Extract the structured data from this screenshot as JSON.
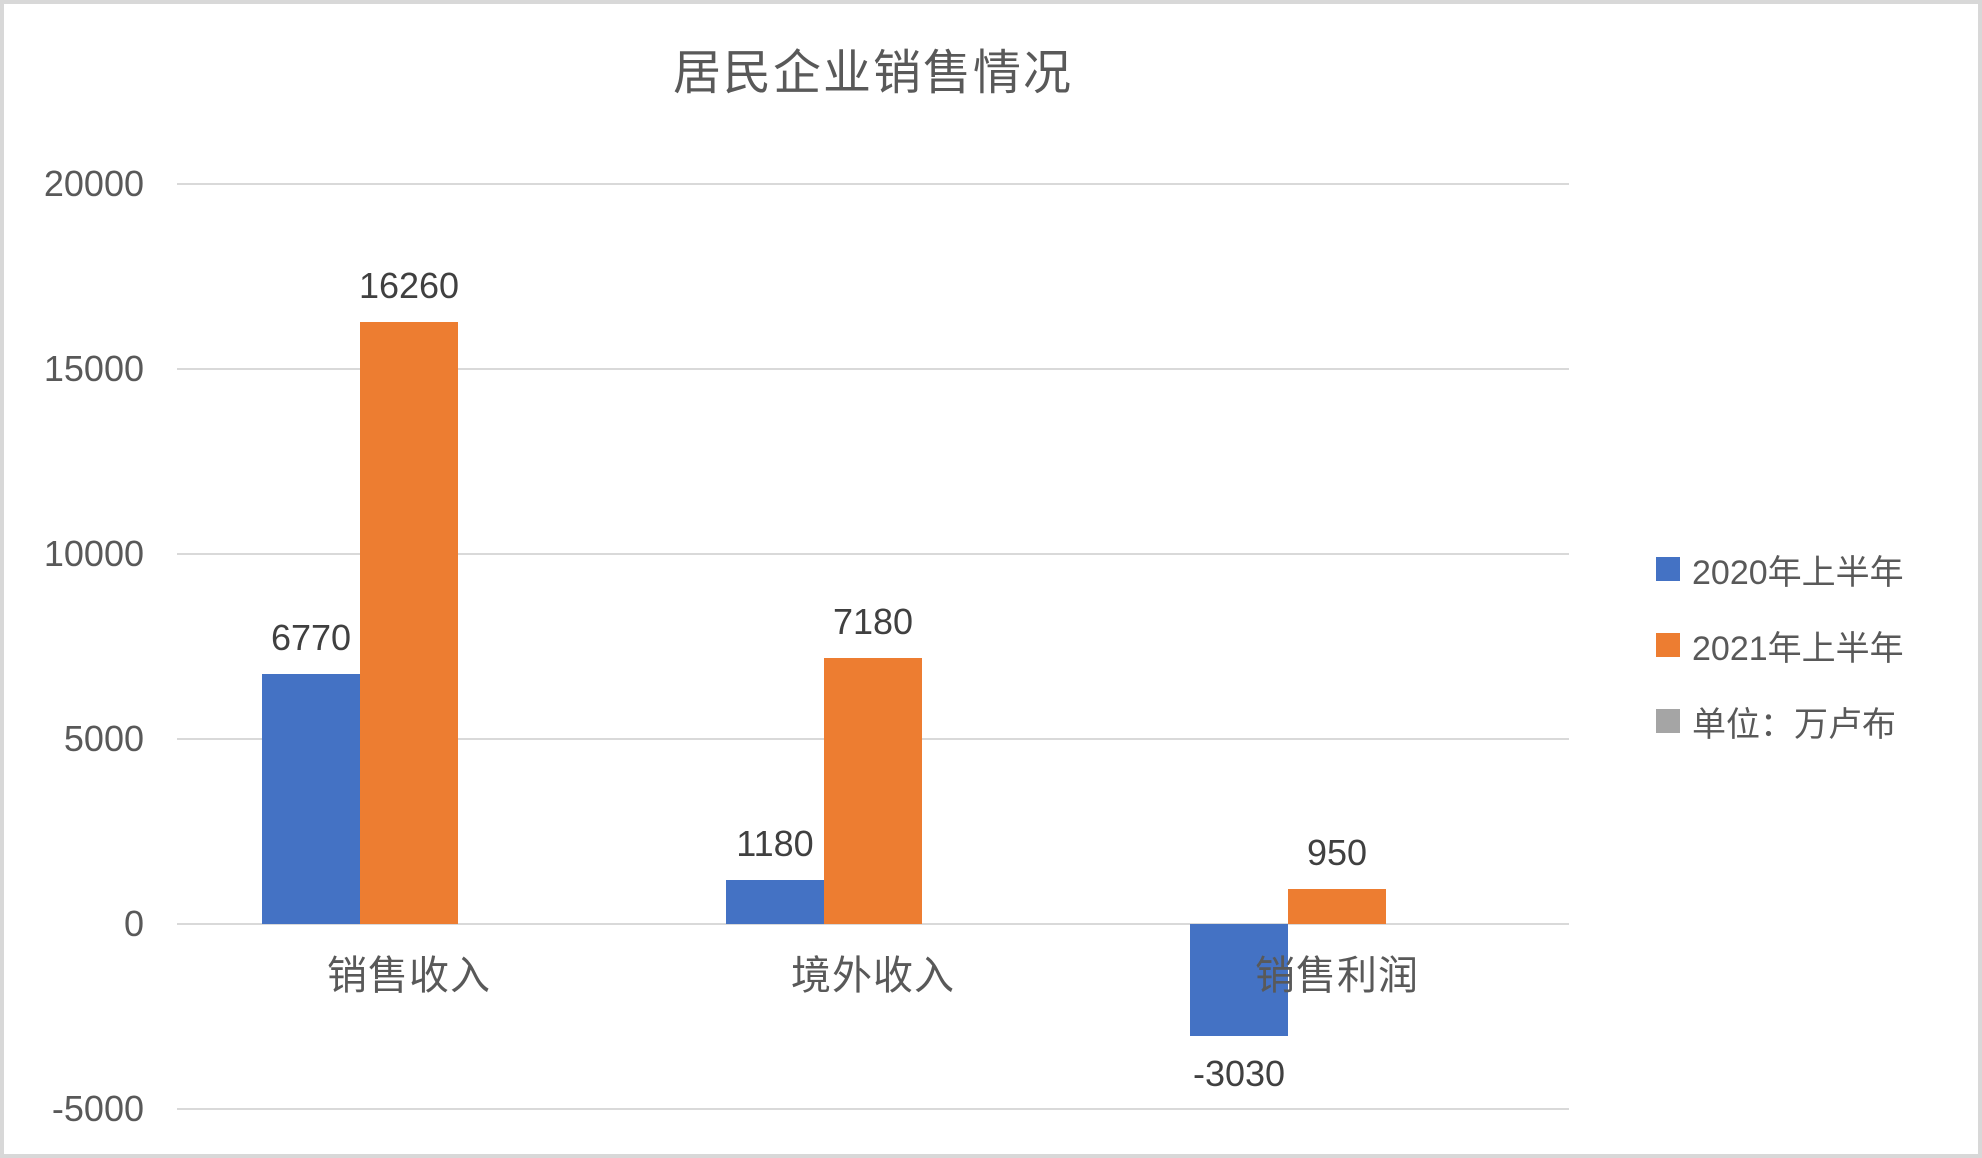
{
  "chart_data": {
    "type": "bar",
    "title": "居民企业销售情况",
    "categories": [
      "销售收入",
      "境外收入",
      "销售利润"
    ],
    "series": [
      {
        "name": "2020年上半年",
        "color": "#4472C4",
        "values": [
          6770,
          1180,
          -3030
        ]
      },
      {
        "name": "2021年上半年",
        "color": "#ED7D31",
        "values": [
          16260,
          7180,
          950
        ]
      },
      {
        "name": "单位：万卢布",
        "color": "#A5A5A5",
        "values": [
          null,
          null,
          null
        ]
      }
    ],
    "data_label_values": [
      "6770",
      "16260",
      "1180",
      "7180",
      "-3030",
      "950"
    ],
    "y_axis": {
      "min": -5000,
      "max": 20000,
      "step": 5000,
      "tick_labels": [
        "20000",
        "15000",
        "10000",
        "5000",
        "0",
        "-5000"
      ]
    },
    "grid": true,
    "legend_position": "right",
    "data_labels": "outside-end",
    "unit_note": "单位：万卢布"
  },
  "colors": {
    "background": "#FFFFFF",
    "frame_border": "#D8D8D8",
    "gridline": "#D9D9D9",
    "axis_text": "#595959",
    "value_label_text": "#404040",
    "title_text": "#595959"
  }
}
